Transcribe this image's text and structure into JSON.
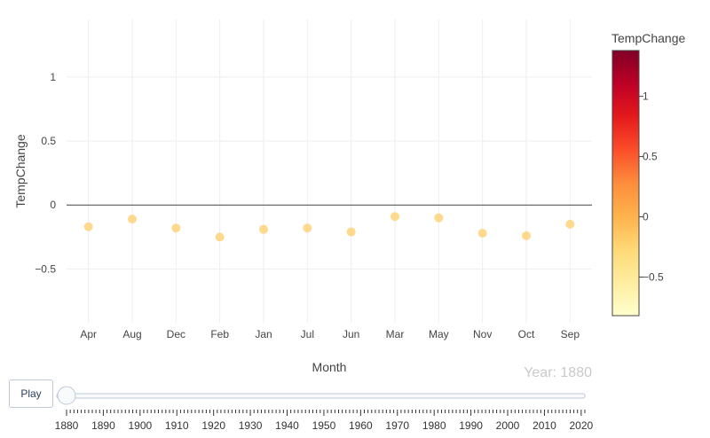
{
  "chart_data": {
    "type": "scatter",
    "xlabel": "Month",
    "ylabel": "TempChange",
    "categories": [
      "Apr",
      "Aug",
      "Dec",
      "Feb",
      "Jan",
      "Jul",
      "Jun",
      "Mar",
      "May",
      "Nov",
      "Oct",
      "Sep"
    ],
    "values": [
      -0.17,
      -0.11,
      -0.18,
      -0.25,
      -0.19,
      -0.18,
      -0.21,
      -0.09,
      -0.1,
      -0.22,
      -0.24,
      -0.15
    ],
    "ylim": [
      -0.92,
      1.45
    ],
    "yticks": [
      {
        "v": 1,
        "label": "1"
      },
      {
        "v": 0.5,
        "label": "0.5"
      },
      {
        "v": 0,
        "label": "0"
      },
      {
        "v": -0.5,
        "label": "−0.5"
      }
    ],
    "grid": true,
    "colorbar": {
      "title": "TempChange",
      "range": [
        -0.82,
        1.38
      ],
      "ticks": [
        {
          "v": 1,
          "label": "1"
        },
        {
          "v": 0.5,
          "label": "0.5"
        },
        {
          "v": 0,
          "label": "0"
        },
        {
          "v": -0.5,
          "label": "−0.5"
        }
      ],
      "colorscale": [
        "#ffffcc",
        "#ffeda0",
        "#fed976",
        "#feb24c",
        "#fd8d3c",
        "#fc4e2a",
        "#e31a1c",
        "#bd0026",
        "#800026"
      ]
    },
    "marker_color": "#fed27a"
  },
  "animation": {
    "play_label": "Play",
    "current_frame": "Year: 1880",
    "slider_labels": [
      "1880",
      "1890",
      "1900",
      "1910",
      "1920",
      "1930",
      "1940",
      "1950",
      "1960",
      "1970",
      "1980",
      "1990",
      "2000",
      "2010",
      "2020"
    ],
    "slider_start": 1880,
    "slider_end": 2021,
    "slider_value": 1880
  }
}
